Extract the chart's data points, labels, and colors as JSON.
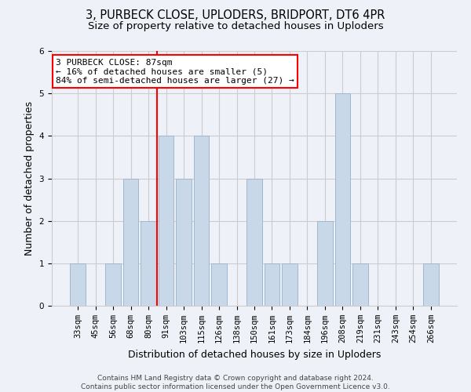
{
  "title": "3, PURBECK CLOSE, UPLODERS, BRIDPORT, DT6 4PR",
  "subtitle": "Size of property relative to detached houses in Uploders",
  "xlabel": "Distribution of detached houses by size in Uploders",
  "ylabel": "Number of detached properties",
  "categories": [
    "33sqm",
    "45sqm",
    "56sqm",
    "68sqm",
    "80sqm",
    "91sqm",
    "103sqm",
    "115sqm",
    "126sqm",
    "138sqm",
    "150sqm",
    "161sqm",
    "173sqm",
    "184sqm",
    "196sqm",
    "208sqm",
    "219sqm",
    "231sqm",
    "243sqm",
    "254sqm",
    "266sqm"
  ],
  "values": [
    1,
    0,
    1,
    3,
    2,
    4,
    3,
    4,
    1,
    0,
    3,
    1,
    1,
    0,
    2,
    5,
    1,
    0,
    0,
    0,
    1
  ],
  "bar_color": "#c8d8e8",
  "bar_edgecolor": "#a0b8cc",
  "annotation_text": "3 PURBECK CLOSE: 87sqm\n← 16% of detached houses are smaller (5)\n84% of semi-detached houses are larger (27) →",
  "annotation_box_color": "white",
  "annotation_box_edgecolor": "red",
  "vline_color": "red",
  "ylim": [
    0,
    6
  ],
  "yticks": [
    0,
    1,
    2,
    3,
    4,
    5,
    6
  ],
  "grid_color": "#cccccc",
  "background_color": "#eef2f8",
  "footer_text": "Contains HM Land Registry data © Crown copyright and database right 2024.\nContains public sector information licensed under the Open Government Licence v3.0.",
  "title_fontsize": 10.5,
  "subtitle_fontsize": 9.5,
  "xlabel_fontsize": 9,
  "ylabel_fontsize": 9,
  "tick_fontsize": 7.5,
  "annotation_fontsize": 8,
  "footer_fontsize": 6.5
}
